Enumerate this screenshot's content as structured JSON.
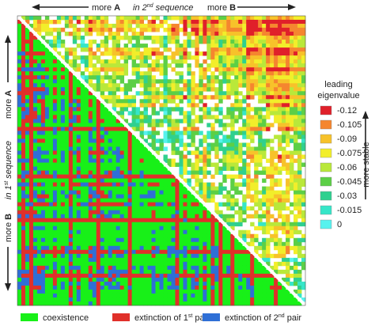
{
  "chart_data": {
    "type": "heatmap",
    "lower_triangle": {
      "categories": [
        {
          "label": "coexistence",
          "color": "#18f018"
        },
        {
          "label": "extinction of 1st pair",
          "color": "#e0302a"
        },
        {
          "label": "extinction of 2nd pair",
          "color": "#2f6fd6"
        }
      ]
    },
    "upper_triangle": {
      "colorbar_title": "leading eigenvalue",
      "colorbar_ticks": [
        "-0.12",
        "-0.105",
        "-0.09",
        "-0.075",
        "-0.06",
        "-0.045",
        "-0.03",
        "-0.015",
        "0"
      ],
      "colorbar_colors": [
        "#e0202a",
        "#f5862f",
        "#f7c22a",
        "#f2ee2a",
        "#b9e83a",
        "#5ccf46",
        "#2fd08f",
        "#36e6c8",
        "#57f2ee"
      ],
      "colorbar_annotation": "more stable"
    },
    "top_axis": {
      "left_label": "more",
      "left_bold": "A",
      "center_label": "in 2",
      "center_sup": "nd",
      "center_suffix": "sequence",
      "right_label": "more",
      "right_bold": "B"
    },
    "left_axis": {
      "top_label": "more",
      "top_bold": "A",
      "center_label": "in 1",
      "center_sup": "st",
      "center_suffix": "sequence",
      "bottom_label": "more",
      "bottom_bold": "B"
    },
    "legend_placement": "bottom"
  }
}
